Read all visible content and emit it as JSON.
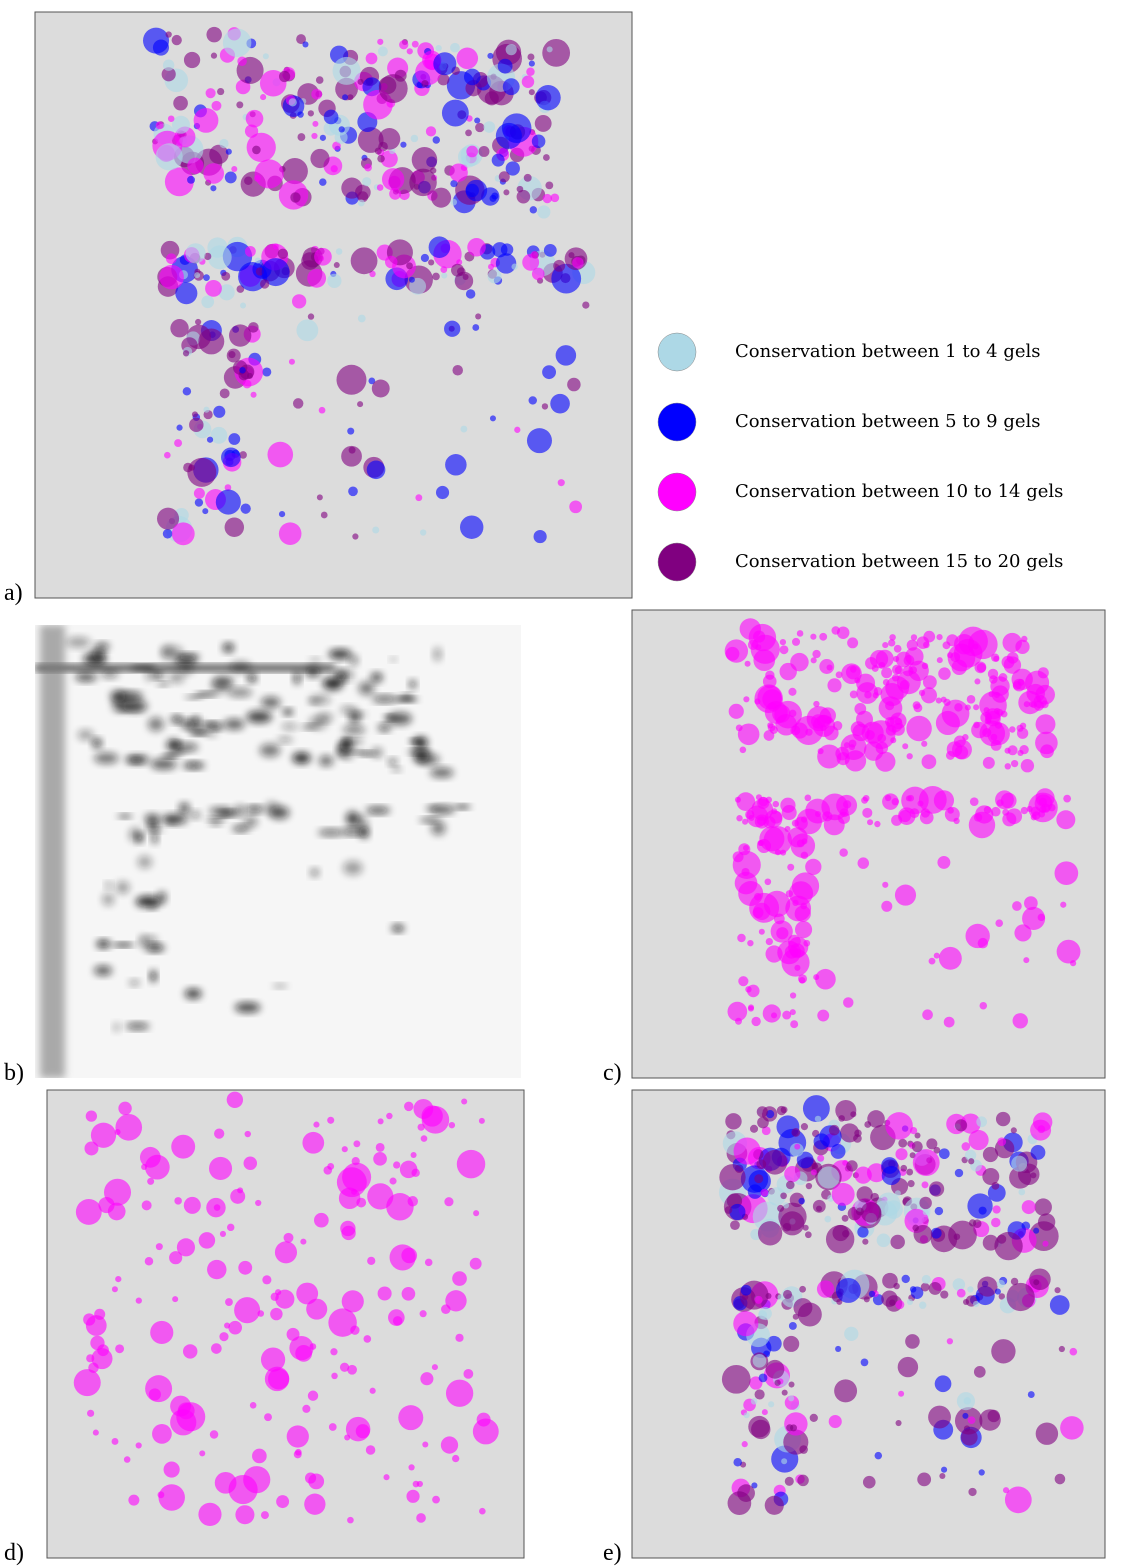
{
  "panels": [
    {
      "label": "a)"
    },
    {
      "label": "b)"
    },
    {
      "label": "c)"
    },
    {
      "label": "d)"
    },
    {
      "label": "e)"
    }
  ],
  "legend": {
    "items": [
      {
        "text": "Conservation between 1 to 4 gels",
        "color": "#add8e6"
      },
      {
        "text": "Conservation between 5 to 9 gels",
        "color": "#0000ff"
      },
      {
        "text": "Conservation between 10 to 14 gels",
        "color": "#ff00ff"
      },
      {
        "text": "Conservation between 15 to 20 gels",
        "color": "#800080"
      }
    ]
  }
}
